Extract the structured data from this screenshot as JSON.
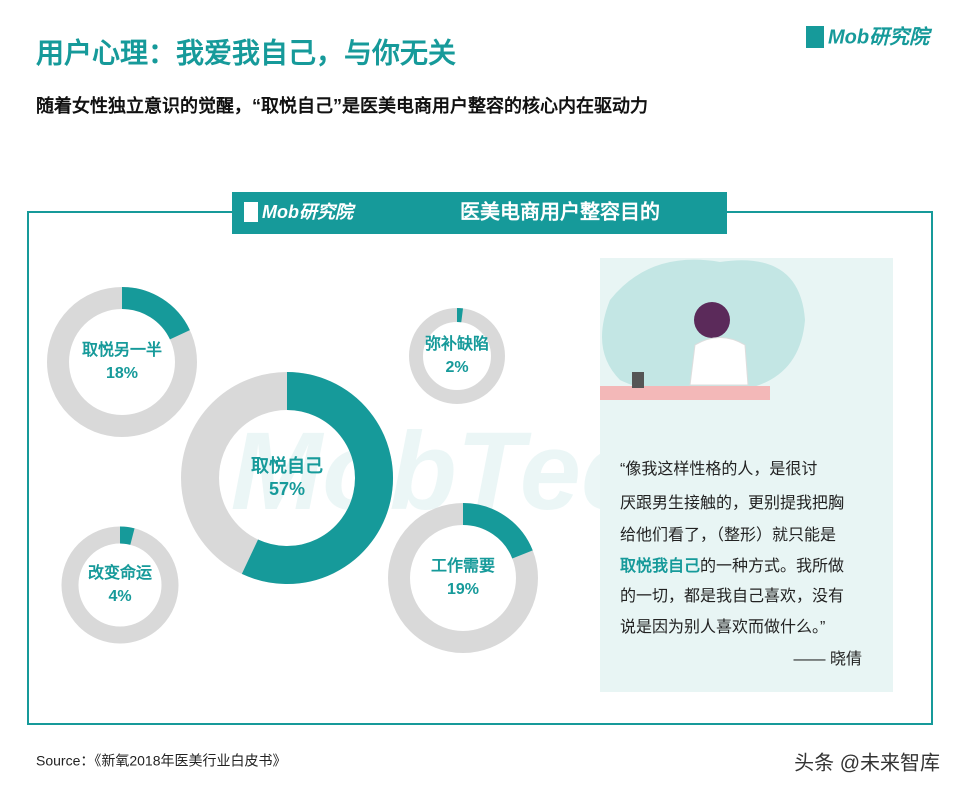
{
  "header": {
    "title": "用户心理：我爱我自己，与你无关",
    "subtitle": "随着女性独立意识的觉醒，“取悦自己”是医美电商用户整容的核心内在驱动力",
    "logo": "Mob研究院"
  },
  "chart_data": {
    "type": "donut",
    "title": "医美电商用户整容目的",
    "logo": "Mob研究院",
    "categories": [
      "取悦另一半",
      "弥补缺陷",
      "取悦自己",
      "改变命运",
      "工作需要"
    ],
    "values": [
      18,
      2,
      57,
      4,
      19
    ],
    "value_labels": [
      "18%",
      "2%",
      "57%",
      "4%",
      "19%"
    ],
    "color": "#169a9a",
    "track_color": "#d9d9d9"
  },
  "quote": {
    "lines": [
      [
        {
          "text": "“像我这样性格的人，是很讨"
        }
      ],
      [
        {
          "text": "厌跟男生接触的，更别提我把胸"
        }
      ],
      [
        {
          "text": "给他们看了，（整形）就只能是"
        }
      ],
      [
        {
          "text": "取悦我自己",
          "emphasis": true
        },
        {
          "text": "的一种方式。我所做"
        }
      ],
      [
        {
          "text": "的一切，都是我自己喜欢，没有"
        }
      ],
      [
        {
          "text": "说是因为别人喜欢而做什么。”"
        }
      ]
    ],
    "author": "—— 晓倩"
  },
  "source": "Source：《新氧2018年医美行业白皮书》",
  "watermark": "头条 @未来智库"
}
